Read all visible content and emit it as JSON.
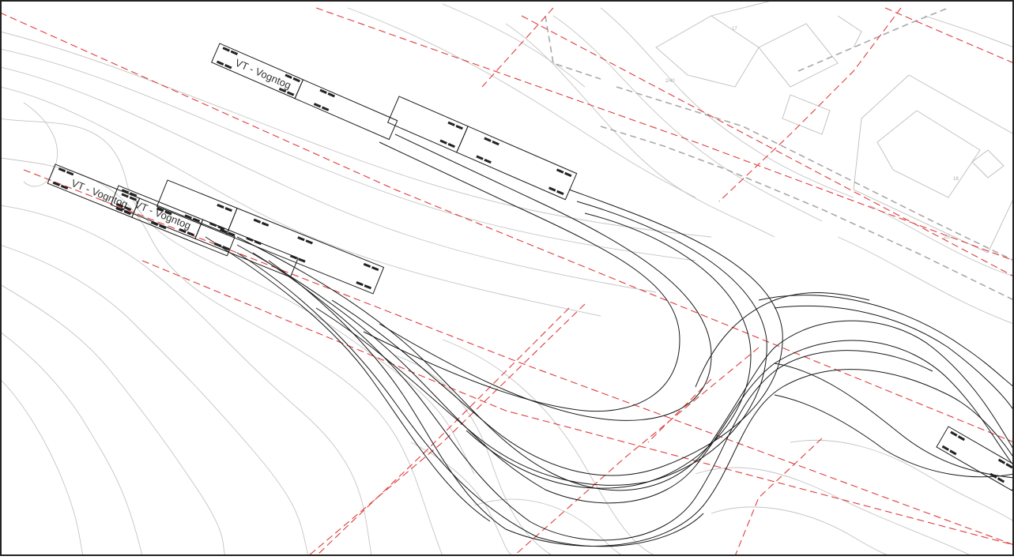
{
  "colors": {
    "background": "#ffffff",
    "frame": "#222222",
    "contour": "#c4c4c4",
    "property_boundary": "#e03c3c",
    "road_edge": "#a9a9a9",
    "swept_path": "#1a1a1a",
    "vehicle": "#1a1a1a"
  },
  "vehicle_labels": {
    "upper": "VT - Vogntog",
    "lower_a": "VT - Vogntog",
    "lower_b": "VT - Vogntog"
  },
  "parcel_labels": {
    "a": "17",
    "b": "2/40",
    "c": "18",
    "d": "2/6"
  },
  "icons": {
    "vehicle": "articulated-truck-outline"
  }
}
